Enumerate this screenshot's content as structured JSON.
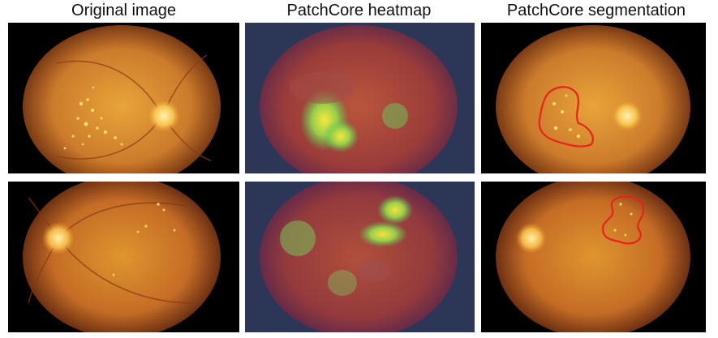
{
  "columns": [
    {
      "title": "Original image"
    },
    {
      "title": "PatchCore heatmap"
    },
    {
      "title": "PatchCore segmentation"
    }
  ],
  "rows": [
    {
      "eye": "left-optic-disc-right",
      "anomaly": "hard-exudates-center"
    },
    {
      "eye": "optic-disc-left",
      "anomaly": "exudates-upper-right"
    }
  ],
  "colors": {
    "fundus_center": "#e9a63b",
    "fundus_mid": "#c8762a",
    "fundus_edge": "#7a3a14",
    "heatmap_cold": "#2b1a4a",
    "heatmap_warm": "#c0392b",
    "heatmap_hot": "#f7e83a",
    "heatmap_green": "#4cc85a",
    "segmentation_contour": "#e8221c"
  }
}
